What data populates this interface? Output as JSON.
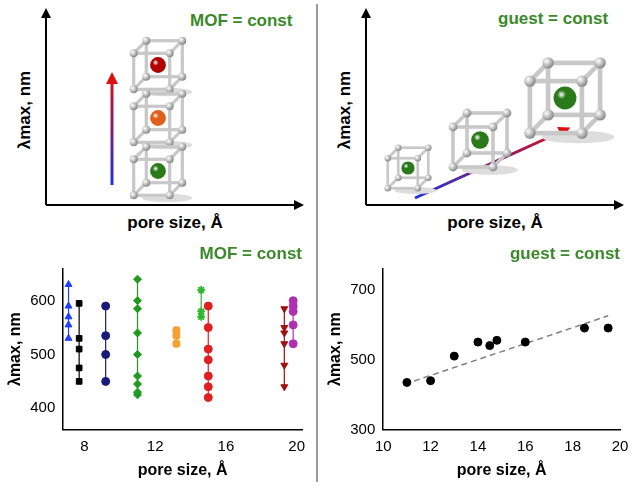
{
  "chart_data": [
    {
      "type": "schematic",
      "title": "MOF = const",
      "x_label": "pore size, Å",
      "y_label": "λmax, nm",
      "tick_labels": false,
      "colors": [
        "#b00000",
        "#e0601a",
        "#2a7a1a"
      ]
    },
    {
      "type": "schematic",
      "title": "guest = const",
      "x_label": "pore size, Å",
      "y_label": "λmax, nm",
      "tick_labels": false,
      "colors": [
        "#2a7a1a",
        "#2a7a1a",
        "#2a7a1a"
      ]
    },
    {
      "type": "scatter",
      "title": "MOF = const",
      "x_label": "pore size, Å",
      "y_label": "λmax, nm",
      "xlim": [
        6.8,
        20.3
      ],
      "xticks": [
        8,
        12,
        16,
        20
      ],
      "ylim": [
        360,
        660
      ],
      "yticks": [
        400,
        500,
        600
      ],
      "grid": false,
      "series": [
        {
          "color": "#2040ff",
          "marker": "triangle",
          "line_style": "solid",
          "x": [
            7.1,
            7.1,
            7.1,
            7.1,
            7.1
          ],
          "values": [
            630,
            590,
            570,
            555,
            530
          ]
        },
        {
          "color": "#000000",
          "marker": "square",
          "line_style": "solid",
          "x": [
            7.7,
            7.7,
            7.7,
            7.7,
            7.7
          ],
          "values": [
            595,
            530,
            510,
            475,
            450
          ]
        },
        {
          "color": "#1a1a7a",
          "marker": "circle",
          "line_style": "solid",
          "x": [
            9.2,
            9.2,
            9.2,
            9.2
          ],
          "values": [
            590,
            535,
            500,
            450
          ]
        },
        {
          "color": "#1f9a1f",
          "marker": "diamond",
          "line_style": "solid",
          "x": [
            11,
            11,
            11,
            11,
            11,
            11,
            11,
            11,
            11
          ],
          "values": [
            640,
            600,
            585,
            540,
            500,
            460,
            445,
            430,
            425
          ]
        },
        {
          "color": "#f5a030",
          "marker": "pentagon",
          "line_style": "solid",
          "x": [
            13.2,
            13.2,
            13.2
          ],
          "values": [
            545,
            535,
            520
          ]
        },
        {
          "color": "#2eb82e",
          "marker": "star",
          "line_style": "solid",
          "x": [
            14.6,
            14.6,
            14.6
          ],
          "values": [
            620,
            580,
            570
          ]
        },
        {
          "color": "#e02020",
          "marker": "circle",
          "line_style": "solid",
          "x": [
            15,
            15,
            15,
            15,
            15,
            15,
            15
          ],
          "values": [
            590,
            550,
            510,
            490,
            460,
            440,
            420
          ]
        },
        {
          "color": "#a01010",
          "marker": "triangle_down",
          "line_style": "solid",
          "x": [
            19.3,
            19.3,
            19.3,
            19.3,
            19.3,
            19.3
          ],
          "values": [
            585,
            550,
            540,
            520,
            480,
            440
          ]
        },
        {
          "color": "#b030b0",
          "marker": "circle",
          "line_style": "solid",
          "x": [
            19.8,
            19.8,
            19.8,
            19.8,
            19.8
          ],
          "values": [
            600,
            590,
            580,
            555,
            520
          ]
        }
      ]
    },
    {
      "type": "scatter",
      "title": "guest = const",
      "x_label": "pore size, Å",
      "y_label": "λmax, nm",
      "xlim": [
        10,
        20
      ],
      "xticks": [
        10,
        12,
        14,
        16,
        18,
        20
      ],
      "ylim": [
        300,
        760
      ],
      "yticks": [
        300,
        500,
        700
      ],
      "grid": false,
      "series": [
        {
          "color": "#000000",
          "marker": "circle",
          "line_style": "none",
          "x": [
            11,
            12,
            13,
            14,
            14.5,
            14.8,
            16,
            18.5,
            19.5
          ],
          "values": [
            435,
            440,
            510,
            550,
            540,
            555,
            550,
            590,
            590
          ]
        },
        {
          "color": "#808080",
          "marker": "none",
          "line_style": "dashed",
          "x": [
            10.9,
            19.5
          ],
          "values": [
            430,
            625
          ]
        }
      ]
    }
  ]
}
